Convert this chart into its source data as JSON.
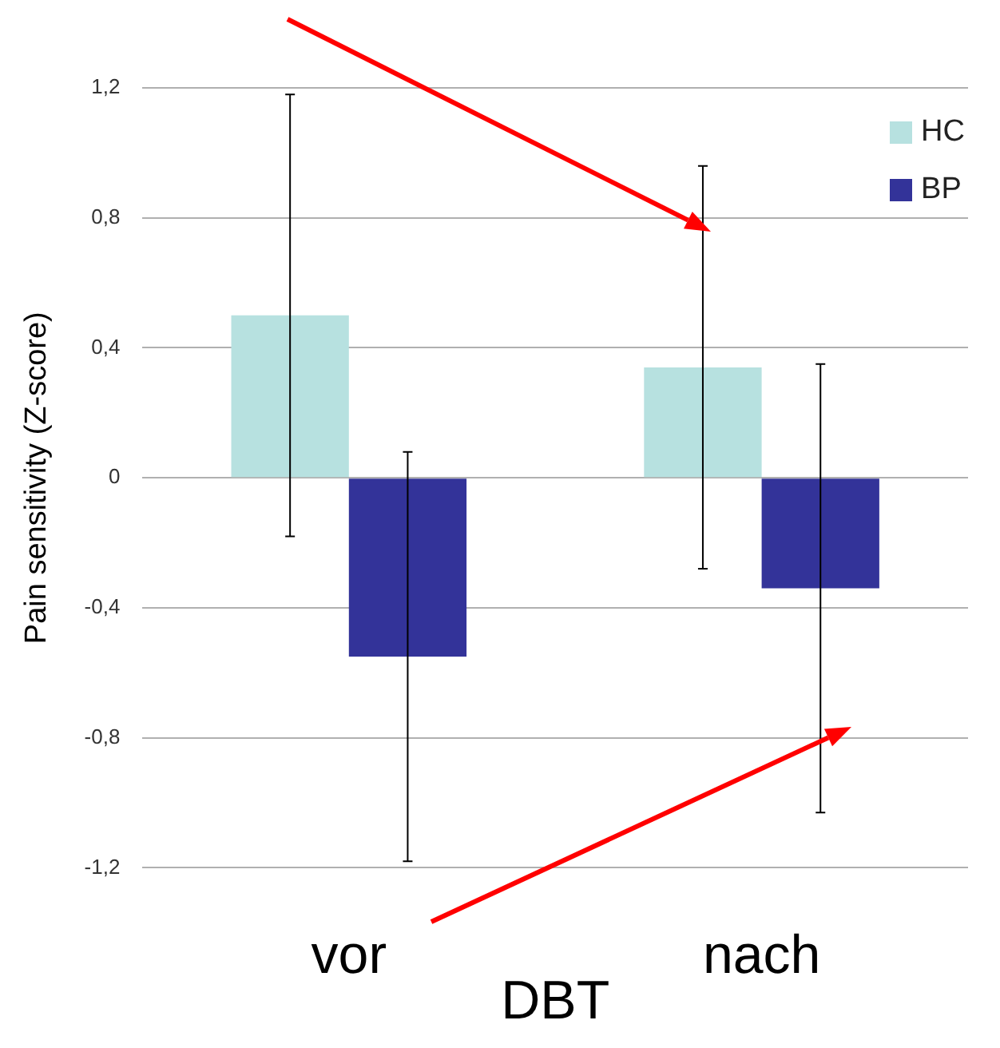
{
  "chart_data": {
    "type": "bar",
    "categories": [
      "vor",
      "nach"
    ],
    "xlabel": "DBT",
    "ylabel": "Pain sensitivity (Z-score)",
    "series": [
      {
        "name": "HC",
        "color": "#b7e1e0",
        "values": [
          0.5,
          0.34
        ],
        "errors": [
          0.68,
          0.62
        ]
      },
      {
        "name": "BP",
        "color": "#333399",
        "values": [
          -0.55,
          -0.34
        ],
        "errors": [
          0.63,
          0.69
        ]
      }
    ],
    "ylim": [
      -1.2,
      1.2
    ],
    "yticks": [
      {
        "value": -1.2,
        "label": "-1,2"
      },
      {
        "value": -0.8,
        "label": "-0,8"
      },
      {
        "value": -0.4,
        "label": "-0,4"
      },
      {
        "value": 0,
        "label": "0"
      },
      {
        "value": 0.4,
        "label": "0,4"
      },
      {
        "value": 0.8,
        "label": "0,8"
      },
      {
        "value": 1.2,
        "label": "1,2"
      }
    ],
    "grid": "y",
    "legend": "top right"
  }
}
